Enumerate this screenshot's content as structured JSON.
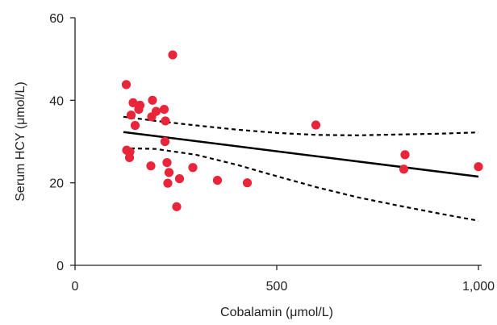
{
  "chart_data": {
    "type": "scatter",
    "xlabel": "Cobalamin (μmol/L)",
    "ylabel": "Serum HCY (μmol/L)",
    "xlim": [
      0,
      1000
    ],
    "ylim": [
      0,
      60
    ],
    "x_ticks": [
      0,
      500,
      1000
    ],
    "x_tick_labels": [
      "0",
      "500",
      "1,000"
    ],
    "y_ticks": [
      0,
      20,
      40,
      60
    ],
    "y_tick_labels": [
      "0",
      "20",
      "40",
      "60"
    ],
    "grid": false,
    "legend": "none",
    "points": [
      {
        "x": 242,
        "y": 51.0
      },
      {
        "x": 127,
        "y": 43.8
      },
      {
        "x": 144,
        "y": 39.4
      },
      {
        "x": 161,
        "y": 38.8
      },
      {
        "x": 192,
        "y": 40.0
      },
      {
        "x": 158,
        "y": 37.8
      },
      {
        "x": 201,
        "y": 37.3
      },
      {
        "x": 221,
        "y": 37.8
      },
      {
        "x": 139,
        "y": 36.4
      },
      {
        "x": 190,
        "y": 36.0
      },
      {
        "x": 224,
        "y": 35.0
      },
      {
        "x": 149,
        "y": 33.9
      },
      {
        "x": 223,
        "y": 30.0
      },
      {
        "x": 128,
        "y": 27.9
      },
      {
        "x": 136,
        "y": 27.5
      },
      {
        "x": 135,
        "y": 26.1
      },
      {
        "x": 228,
        "y": 24.9
      },
      {
        "x": 188,
        "y": 24.1
      },
      {
        "x": 292,
        "y": 23.7
      },
      {
        "x": 233,
        "y": 22.5
      },
      {
        "x": 259,
        "y": 21.0
      },
      {
        "x": 230,
        "y": 19.9
      },
      {
        "x": 353,
        "y": 20.6
      },
      {
        "x": 427,
        "y": 20.0
      },
      {
        "x": 252,
        "y": 14.2
      },
      {
        "x": 597,
        "y": 34.0
      },
      {
        "x": 818,
        "y": 26.8
      },
      {
        "x": 815,
        "y": 23.3
      },
      {
        "x": 1000,
        "y": 23.9
      }
    ],
    "fit_line": {
      "x": [
        120,
        1000
      ],
      "y": [
        32.3,
        21.5
      ]
    },
    "ci_upper": {
      "x": [
        120,
        200,
        300,
        400,
        500,
        600,
        700,
        800,
        900,
        1000
      ],
      "y": [
        36.0,
        35.0,
        33.9,
        32.9,
        32.1,
        31.6,
        31.5,
        31.7,
        31.9,
        32.2
      ]
    },
    "ci_lower": {
      "x": [
        120,
        200,
        300,
        400,
        500,
        600,
        700,
        800,
        900,
        1000
      ],
      "y": [
        28.4,
        28.2,
        26.8,
        24.4,
        21.6,
        18.9,
        16.5,
        14.5,
        12.6,
        10.8
      ]
    },
    "colors": {
      "point": "#e8253b",
      "line": "#000000",
      "axis": "#222222"
    }
  }
}
